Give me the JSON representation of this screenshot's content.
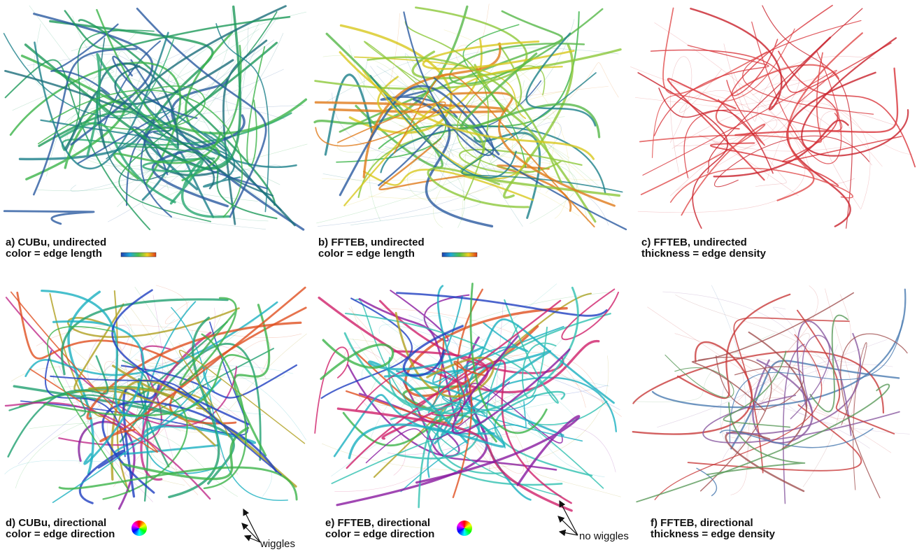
{
  "panels": [
    {
      "caption": [
        "a) CUBu, undirected",
        "color = edge length"
      ]
    },
    {
      "caption": [
        "b) FFTEB, undirected",
        "color = edge length"
      ]
    },
    {
      "caption": [
        "c) FFTEB, undirected",
        "thickness = edge density"
      ]
    },
    {
      "caption": [
        "d) CUBu, directional",
        "color = edge direction"
      ]
    },
    {
      "caption": [
        "e) FFTEB, directional",
        "color = edge direction"
      ]
    },
    {
      "caption": [
        "f) FFTEB, directional",
        "thickness = edge density"
      ]
    }
  ],
  "annotations": {
    "left": "wiggles",
    "right": "no wiggles"
  }
}
